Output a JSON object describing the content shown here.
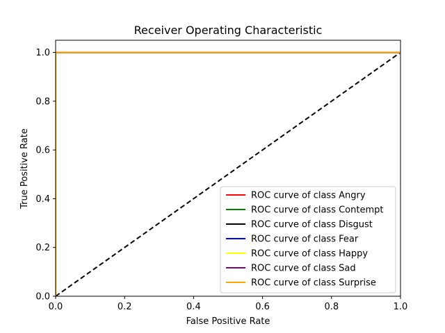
{
  "chart_data": {
    "type": "line",
    "title": "Receiver Operating Characteristic",
    "xlabel": "False Positive Rate",
    "ylabel": "True Positive Rate",
    "xlim": [
      0.0,
      1.0
    ],
    "ylim": [
      0.0,
      1.05
    ],
    "xticks": [
      0.0,
      0.2,
      0.4,
      0.6,
      0.8,
      1.0
    ],
    "yticks": [
      0.0,
      0.2,
      0.4,
      0.6,
      0.8,
      1.0
    ],
    "xtick_labels": [
      "0.0",
      "0.2",
      "0.4",
      "0.6",
      "0.8",
      "1.0"
    ],
    "ytick_labels": [
      "0.0",
      "0.2",
      "0.4",
      "0.6",
      "0.8",
      "1.0"
    ],
    "grid": false,
    "legend_position": "lower-right",
    "series": [
      {
        "name": "ROC curve of class Angry",
        "color": "#ff0000",
        "x": [
          0.0,
          0.0,
          1.0
        ],
        "y": [
          0.0,
          1.0,
          1.0
        ]
      },
      {
        "name": "ROC curve of class Contempt",
        "color": "#008000",
        "x": [
          0.0,
          0.0,
          1.0
        ],
        "y": [
          0.0,
          1.0,
          1.0
        ]
      },
      {
        "name": "ROC curve of class Disgust",
        "color": "#000000",
        "x": [
          0.0,
          0.0,
          1.0
        ],
        "y": [
          0.0,
          1.0,
          1.0
        ]
      },
      {
        "name": "ROC curve of class Fear",
        "color": "#0000ff",
        "x": [
          0.0,
          0.0,
          1.0
        ],
        "y": [
          0.0,
          1.0,
          1.0
        ]
      },
      {
        "name": "ROC curve of class Happy",
        "color": "#ffff00",
        "x": [
          0.0,
          0.0,
          1.0
        ],
        "y": [
          0.0,
          1.0,
          1.0
        ]
      },
      {
        "name": "ROC curve of class Sad",
        "color": "#800080",
        "x": [
          0.0,
          0.0,
          1.0
        ],
        "y": [
          0.0,
          1.0,
          1.0
        ]
      },
      {
        "name": "ROC curve of class Surprise",
        "color": "#ffa500",
        "x": [
          0.0,
          0.0,
          1.0
        ],
        "y": [
          0.0,
          1.0,
          1.0
        ]
      }
    ],
    "reference_line": {
      "x": [
        0.0,
        1.0
      ],
      "y": [
        0.0,
        1.0
      ],
      "color": "#000000",
      "style": "dashed"
    }
  }
}
